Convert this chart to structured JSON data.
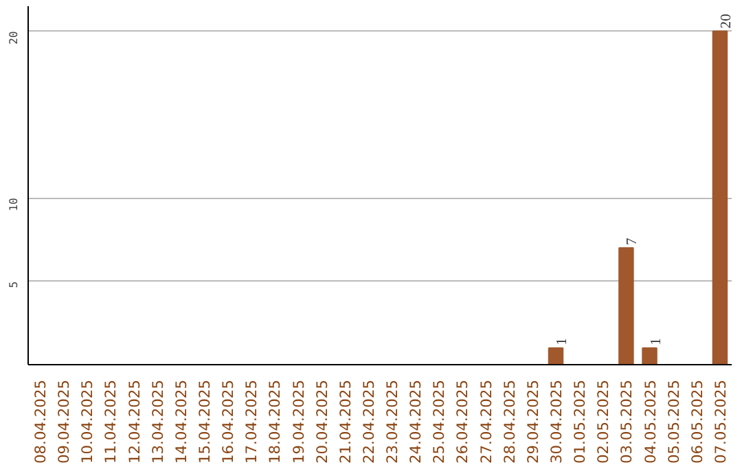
{
  "chart_data": {
    "type": "bar",
    "categories": [
      "08.04.2025",
      "09.04.2025",
      "10.04.2025",
      "11.04.2025",
      "12.04.2025",
      "13.04.2025",
      "14.04.2025",
      "15.04.2025",
      "16.04.2025",
      "17.04.2025",
      "18.04.2025",
      "19.04.2025",
      "20.04.2025",
      "21.04.2025",
      "22.04.2025",
      "23.04.2025",
      "24.04.2025",
      "25.04.2025",
      "26.04.2025",
      "27.04.2025",
      "28.04.2025",
      "29.04.2025",
      "30.04.2025",
      "01.05.2025",
      "02.05.2025",
      "03.05.2025",
      "04.05.2025",
      "05.05.2025",
      "06.05.2025",
      "07.05.2025"
    ],
    "values": [
      0,
      0,
      0,
      0,
      0,
      0,
      0,
      0,
      0,
      0,
      0,
      0,
      0,
      0,
      0,
      0,
      0,
      0,
      0,
      0,
      0,
      0,
      1,
      0,
      0,
      7,
      1,
      0,
      0,
      20
    ],
    "value_labels": [
      null,
      null,
      null,
      null,
      null,
      null,
      null,
      null,
      null,
      null,
      null,
      null,
      null,
      null,
      null,
      null,
      null,
      null,
      null,
      null,
      null,
      null,
      "1",
      null,
      null,
      "7",
      "1",
      null,
      null,
      "20"
    ],
    "color": "#a0582c",
    "ylim": [
      0,
      21.5
    ],
    "yticks": [
      5,
      10,
      20
    ],
    "grid": "y"
  }
}
